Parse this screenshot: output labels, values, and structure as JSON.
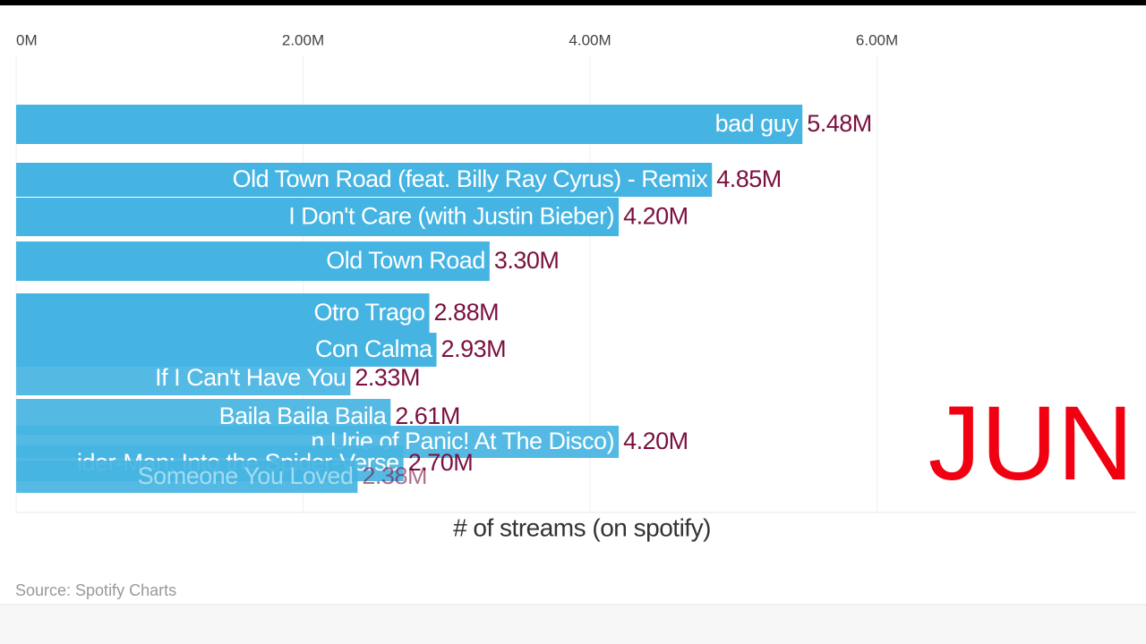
{
  "chart_data": {
    "type": "barh",
    "x_label": "# of streams (on spotify)",
    "source": "Source: Spotify Charts",
    "period": "JUN",
    "color": "#45b4e2",
    "categories": [
      "bad guy",
      "Old Town Road (feat. Billy Ray Cyrus) - Remix",
      "I Don't Care (with Justin Bieber)",
      "Old Town Road",
      "Otro Trago",
      "Con Calma",
      "If I Can't Have You",
      "Baila Baila Baila",
      "n Urie of Panic! At The Disco)",
      "ider-Man: Into the Spider-Verse",
      "Someone You Loved"
    ],
    "values": [
      5480000,
      4850000,
      4200000,
      3300000,
      2880000,
      2930000,
      2330000,
      2610000,
      4200000,
      2700000,
      2380000
    ],
    "value_labels": [
      "5.48M",
      "4.85M",
      "4.20M",
      "3.30M",
      "2.88M",
      "2.93M",
      "2.33M",
      "2.61M",
      "4.20M",
      "2.70M",
      "2.38M"
    ],
    "xlim": [
      0,
      7800000
    ],
    "xticks": [
      {
        "value": 0,
        "label": "0M"
      },
      {
        "value": 2000000,
        "label": "2.00M"
      },
      {
        "value": 4000000,
        "label": "4.00M"
      },
      {
        "value": 6000000,
        "label": "6.00M"
      }
    ],
    "grid": true
  }
}
